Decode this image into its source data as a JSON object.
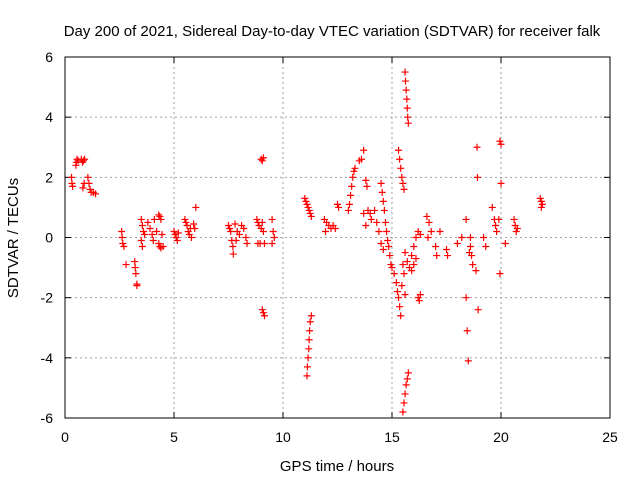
{
  "chart_data": {
    "type": "scatter",
    "title": "Day 200 of 2021, Sidereal Day-to-day VTEC variation (SDTVAR) for receiver falk",
    "xlabel": "GPS time / hours",
    "ylabel": "SDTVAR / TECUs",
    "xlim": [
      0,
      25
    ],
    "ylim": [
      -6,
      6
    ],
    "xticks": [
      "0",
      "5",
      "10",
      "15",
      "20",
      "25"
    ],
    "yticks": [
      "-6",
      "-4",
      "-2",
      "0",
      "2",
      "4",
      "6"
    ],
    "grid": true,
    "marker": "+",
    "marker_color": "#ff0000",
    "series": [
      {
        "name": "SDTVAR",
        "points": [
          [
            0.3,
            2.0
          ],
          [
            0.32,
            1.8
          ],
          [
            0.35,
            1.7
          ],
          [
            0.5,
            2.4
          ],
          [
            0.52,
            2.5
          ],
          [
            0.55,
            2.6
          ],
          [
            0.6,
            2.55
          ],
          [
            0.75,
            2.6
          ],
          [
            0.8,
            2.5
          ],
          [
            0.85,
            2.55
          ],
          [
            0.9,
            2.6
          ],
          [
            0.82,
            1.65
          ],
          [
            0.88,
            1.8
          ],
          [
            1.05,
            2.0
          ],
          [
            1.1,
            1.8
          ],
          [
            1.15,
            1.6
          ],
          [
            1.2,
            1.5
          ],
          [
            1.3,
            1.5
          ],
          [
            1.4,
            1.45
          ],
          [
            2.6,
            0.2
          ],
          [
            2.62,
            0.0
          ],
          [
            2.65,
            -0.2
          ],
          [
            2.7,
            -0.3
          ],
          [
            2.8,
            -0.9
          ],
          [
            3.2,
            -0.8
          ],
          [
            3.22,
            -1.0
          ],
          [
            3.25,
            -1.2
          ],
          [
            3.3,
            -1.55
          ],
          [
            3.3,
            -1.6
          ],
          [
            3.5,
            0.6
          ],
          [
            3.55,
            0.4
          ],
          [
            3.6,
            0.2
          ],
          [
            3.65,
            0.1
          ],
          [
            3.5,
            -0.1
          ],
          [
            3.55,
            -0.3
          ],
          [
            3.8,
            0.5
          ],
          [
            3.9,
            0.3
          ],
          [
            4.0,
            0.1
          ],
          [
            4.05,
            -0.1
          ],
          [
            4.1,
            0.6
          ],
          [
            4.2,
            0.2
          ],
          [
            4.3,
            0.75
          ],
          [
            4.35,
            0.7
          ],
          [
            4.4,
            0.6
          ],
          [
            4.45,
            0.1
          ],
          [
            4.3,
            -0.2
          ],
          [
            4.35,
            -0.3
          ],
          [
            4.4,
            -0.35
          ],
          [
            4.5,
            -0.3
          ],
          [
            5.0,
            0.2
          ],
          [
            5.05,
            0.1
          ],
          [
            5.1,
            0.0
          ],
          [
            5.15,
            -0.1
          ],
          [
            5.2,
            0.15
          ],
          [
            5.5,
            0.6
          ],
          [
            5.55,
            0.5
          ],
          [
            5.6,
            0.4
          ],
          [
            5.65,
            0.2
          ],
          [
            5.7,
            0.1
          ],
          [
            5.75,
            0.3
          ],
          [
            5.8,
            0.0
          ],
          [
            5.9,
            0.45
          ],
          [
            5.95,
            0.3
          ],
          [
            6.0,
            1.0
          ],
          [
            7.5,
            0.4
          ],
          [
            7.55,
            0.3
          ],
          [
            7.6,
            0.2
          ],
          [
            7.65,
            -0.1
          ],
          [
            7.7,
            -0.3
          ],
          [
            7.72,
            -0.55
          ],
          [
            7.8,
            0.45
          ],
          [
            7.9,
            0.2
          ],
          [
            8.0,
            0.1
          ],
          [
            8.1,
            0.4
          ],
          [
            8.2,
            0.3
          ],
          [
            8.3,
            0.0
          ],
          [
            8.35,
            -0.2
          ],
          [
            7.85,
            -0.1
          ],
          [
            8.8,
            0.6
          ],
          [
            8.85,
            0.5
          ],
          [
            8.9,
            0.4
          ],
          [
            9.0,
            0.3
          ],
          [
            9.05,
            0.5
          ],
          [
            9.1,
            0.2
          ],
          [
            8.95,
            -0.2
          ],
          [
            8.85,
            -0.2
          ],
          [
            9.15,
            -0.2
          ],
          [
            9.0,
            2.6
          ],
          [
            9.05,
            2.55
          ],
          [
            9.1,
            2.65
          ],
          [
            9.05,
            -2.4
          ],
          [
            9.1,
            -2.5
          ],
          [
            9.15,
            -2.6
          ],
          [
            9.5,
            0.6
          ],
          [
            9.55,
            0.2
          ],
          [
            9.6,
            0.0
          ],
          [
            9.5,
            -0.2
          ],
          [
            11.0,
            1.3
          ],
          [
            11.05,
            1.2
          ],
          [
            11.1,
            1.1
          ],
          [
            11.15,
            1.0
          ],
          [
            11.2,
            0.9
          ],
          [
            11.25,
            0.8
          ],
          [
            11.3,
            0.7
          ],
          [
            11.1,
            -4.6
          ],
          [
            11.12,
            -4.3
          ],
          [
            11.15,
            -4.0
          ],
          [
            11.18,
            -3.7
          ],
          [
            11.2,
            -3.4
          ],
          [
            11.22,
            -3.1
          ],
          [
            11.25,
            -2.8
          ],
          [
            11.3,
            -2.6
          ],
          [
            11.9,
            0.6
          ],
          [
            12.0,
            0.5
          ],
          [
            12.1,
            0.4
          ],
          [
            12.2,
            0.3
          ],
          [
            12.3,
            0.4
          ],
          [
            12.4,
            0.3
          ],
          [
            11.95,
            0.2
          ],
          [
            12.5,
            1.1
          ],
          [
            12.55,
            1.0
          ],
          [
            13.0,
            0.9
          ],
          [
            13.05,
            1.1
          ],
          [
            13.1,
            1.4
          ],
          [
            13.15,
            1.7
          ],
          [
            13.2,
            2.0
          ],
          [
            13.25,
            2.2
          ],
          [
            13.3,
            2.3
          ],
          [
            13.5,
            2.55
          ],
          [
            13.6,
            2.6
          ],
          [
            13.7,
            2.9
          ],
          [
            13.8,
            1.9
          ],
          [
            13.85,
            1.7
          ],
          [
            13.7,
            0.8
          ],
          [
            13.8,
            0.4
          ],
          [
            13.9,
            0.9
          ],
          [
            14.0,
            0.8
          ],
          [
            14.05,
            0.6
          ],
          [
            14.2,
            0.9
          ],
          [
            14.3,
            0.5
          ],
          [
            14.4,
            0.2
          ],
          [
            14.5,
            1.8
          ],
          [
            14.55,
            1.5
          ],
          [
            14.6,
            1.2
          ],
          [
            14.65,
            0.9
          ],
          [
            14.7,
            0.5
          ],
          [
            14.75,
            0.2
          ],
          [
            14.8,
            -0.1
          ],
          [
            14.85,
            -0.3
          ],
          [
            14.9,
            -0.6
          ],
          [
            14.95,
            -0.9
          ],
          [
            14.5,
            -0.2
          ],
          [
            14.6,
            -0.4
          ],
          [
            15.0,
            -1.0
          ],
          [
            15.1,
            -1.2
          ],
          [
            15.2,
            -1.5
          ],
          [
            15.25,
            -1.8
          ],
          [
            15.3,
            -2.0
          ],
          [
            15.35,
            -2.3
          ],
          [
            15.4,
            -2.6
          ],
          [
            15.3,
            2.9
          ],
          [
            15.35,
            2.6
          ],
          [
            15.4,
            2.3
          ],
          [
            15.45,
            2.0
          ],
          [
            15.5,
            1.8
          ],
          [
            15.55,
            1.6
          ],
          [
            15.6,
            5.5
          ],
          [
            15.62,
            5.2
          ],
          [
            15.65,
            4.9
          ],
          [
            15.68,
            4.6
          ],
          [
            15.7,
            4.3
          ],
          [
            15.72,
            4.0
          ],
          [
            15.75,
            3.8
          ],
          [
            15.5,
            -5.8
          ],
          [
            15.55,
            -5.5
          ],
          [
            15.6,
            -5.2
          ],
          [
            15.65,
            -4.9
          ],
          [
            15.7,
            -4.7
          ],
          [
            15.75,
            -4.5
          ],
          [
            15.6,
            -0.5
          ],
          [
            15.7,
            -0.8
          ],
          [
            15.8,
            -1.0
          ],
          [
            15.9,
            -0.6
          ],
          [
            16.0,
            -0.3
          ],
          [
            16.1,
            0.0
          ],
          [
            16.2,
            0.2
          ],
          [
            16.3,
            0.1
          ],
          [
            15.5,
            -0.9
          ],
          [
            15.55,
            -1.2
          ],
          [
            15.45,
            -1.6
          ],
          [
            15.6,
            -1.9
          ],
          [
            15.9,
            -1.1
          ],
          [
            16.0,
            -0.9
          ],
          [
            16.1,
            -0.7
          ],
          [
            16.2,
            -2.0
          ],
          [
            16.25,
            -2.1
          ],
          [
            16.3,
            -1.9
          ],
          [
            16.6,
            0.7
          ],
          [
            16.7,
            0.5
          ],
          [
            16.8,
            0.2
          ],
          [
            16.65,
            0.0
          ],
          [
            17.0,
            -0.3
          ],
          [
            17.05,
            -0.6
          ],
          [
            17.2,
            0.2
          ],
          [
            17.5,
            -0.4
          ],
          [
            17.55,
            -0.6
          ],
          [
            18.0,
            -0.2
          ],
          [
            18.2,
            0.0
          ],
          [
            18.4,
            0.6
          ],
          [
            18.6,
            -0.3
          ],
          [
            18.65,
            -0.6
          ],
          [
            18.7,
            -0.9
          ],
          [
            18.55,
            -0.5
          ],
          [
            18.6,
            0.0
          ],
          [
            18.4,
            -2.0
          ],
          [
            18.45,
            -3.1
          ],
          [
            18.5,
            -4.1
          ],
          [
            18.9,
            3.0
          ],
          [
            18.92,
            2.0
          ],
          [
            18.85,
            -1.1
          ],
          [
            18.95,
            -2.4
          ],
          [
            19.2,
            0.0
          ],
          [
            19.3,
            -0.3
          ],
          [
            19.6,
            1.0
          ],
          [
            19.7,
            0.6
          ],
          [
            19.75,
            0.4
          ],
          [
            19.8,
            0.2
          ],
          [
            19.9,
            0.6
          ],
          [
            19.95,
            3.2
          ],
          [
            20.0,
            3.1
          ],
          [
            20.0,
            1.8
          ],
          [
            19.95,
            -1.2
          ],
          [
            20.2,
            -0.2
          ],
          [
            20.6,
            0.6
          ],
          [
            20.65,
            0.4
          ],
          [
            20.7,
            0.2
          ],
          [
            20.75,
            0.3
          ],
          [
            21.8,
            1.3
          ],
          [
            21.85,
            1.2
          ],
          [
            21.9,
            1.1
          ],
          [
            21.85,
            1.0
          ]
        ]
      }
    ]
  }
}
